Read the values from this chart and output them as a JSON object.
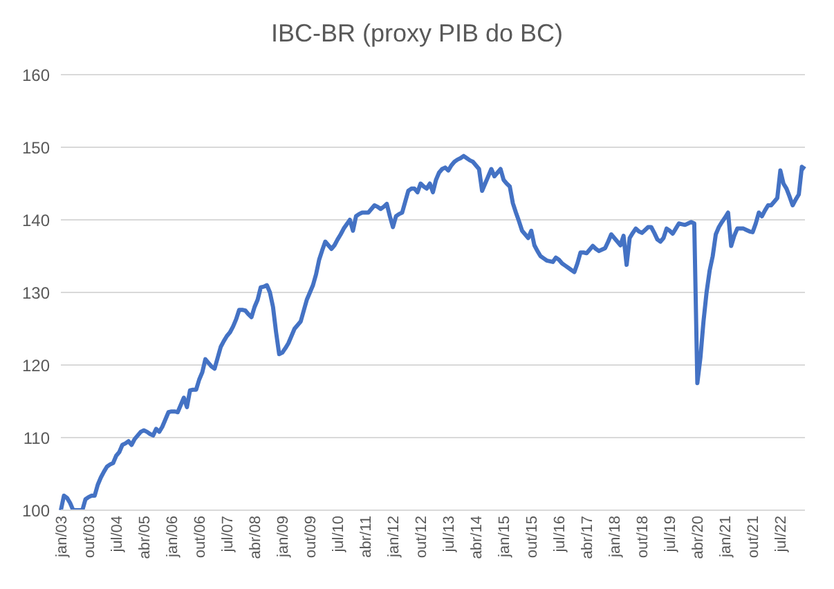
{
  "chart_data": {
    "type": "line",
    "title": "IBC-BR (proxy PIB do BC)",
    "categories": [
      "jan/03",
      null,
      null,
      null,
      null,
      null,
      null,
      null,
      null,
      "out/03",
      null,
      null,
      null,
      null,
      null,
      null,
      null,
      null,
      "jul/04",
      null,
      null,
      null,
      null,
      null,
      null,
      null,
      null,
      "abr/05",
      null,
      null,
      null,
      null,
      null,
      null,
      null,
      null,
      "jan/06",
      null,
      null,
      null,
      null,
      null,
      null,
      null,
      null,
      "out/06",
      null,
      null,
      null,
      null,
      null,
      null,
      null,
      null,
      "jul/07",
      null,
      null,
      null,
      null,
      null,
      null,
      null,
      null,
      "abr/08",
      null,
      null,
      null,
      null,
      null,
      null,
      null,
      null,
      "jan/09",
      null,
      null,
      null,
      null,
      null,
      null,
      null,
      null,
      "out/09",
      null,
      null,
      null,
      null,
      null,
      null,
      null,
      null,
      "jul/10",
      null,
      null,
      null,
      null,
      null,
      null,
      null,
      null,
      "abr/11",
      null,
      null,
      null,
      null,
      null,
      null,
      null,
      null,
      "jan/12",
      null,
      null,
      null,
      null,
      null,
      null,
      null,
      null,
      "out/12",
      null,
      null,
      null,
      null,
      null,
      null,
      null,
      null,
      "jul/13",
      null,
      null,
      null,
      null,
      null,
      null,
      null,
      null,
      "abr/14",
      null,
      null,
      null,
      null,
      null,
      null,
      null,
      null,
      "jan/15",
      null,
      null,
      null,
      null,
      null,
      null,
      null,
      null,
      "out/15",
      null,
      null,
      null,
      null,
      null,
      null,
      null,
      null,
      "jul/16",
      null,
      null,
      null,
      null,
      null,
      null,
      null,
      null,
      "abr/17",
      null,
      null,
      null,
      null,
      null,
      null,
      null,
      null,
      "jan/18",
      null,
      null,
      null,
      null,
      null,
      null,
      null,
      null,
      "out/18",
      null,
      null,
      null,
      null,
      null,
      null,
      null,
      null,
      "jul/19",
      null,
      null,
      null,
      null,
      null,
      null,
      null,
      null,
      "abr/20",
      null,
      null,
      null,
      null,
      null,
      null,
      null,
      null,
      "jan/21",
      null,
      null,
      null,
      null,
      null,
      null,
      null,
      null,
      "out/21",
      null,
      null,
      null,
      null,
      null,
      null,
      null,
      null,
      "jul/22",
      null,
      null,
      null,
      null,
      null,
      null,
      null,
      null
    ],
    "series": [
      {
        "color": "#4472c4",
        "values": [
          100,
          102,
          101.7,
          101,
          100,
          100,
          100,
          100,
          101.5,
          101.8,
          102,
          102,
          103.5,
          104.5,
          105.3,
          106,
          106.3,
          106.5,
          107.5,
          108,
          109,
          109.2,
          109.5,
          109,
          109.8,
          110.3,
          110.8,
          111,
          110.8,
          110.5,
          110.3,
          111.2,
          110.8,
          111.5,
          112.5,
          113.5,
          113.6,
          113.6,
          113.5,
          114.5,
          115.5,
          114.2,
          116.5,
          116.6,
          116.6,
          118,
          119,
          120.8,
          120.3,
          119.8,
          119.5,
          121,
          122.5,
          123.3,
          124,
          124.5,
          125.3,
          126.3,
          127.6,
          127.6,
          127.5,
          127,
          126.6,
          128,
          129,
          130.7,
          130.8,
          131,
          130,
          128,
          124.5,
          121.5,
          121.7,
          122.3,
          123,
          124,
          125,
          125.5,
          126,
          127.5,
          129,
          130,
          131,
          132.5,
          134.5,
          135.8,
          137,
          136.5,
          136,
          136.5,
          137.3,
          138,
          138.8,
          139.4,
          140,
          138.5,
          140.5,
          140.8,
          141,
          141,
          141,
          141.5,
          142,
          141.8,
          141.5,
          141.8,
          142.2,
          140.5,
          139,
          140.5,
          140.8,
          141,
          142.5,
          144,
          144.3,
          144.3,
          143.8,
          145,
          144.6,
          144.3,
          145,
          143.8,
          145.5,
          146.5,
          147,
          147.2,
          146.8,
          147.5,
          148,
          148.3,
          148.5,
          148.8,
          148.5,
          148.2,
          148,
          147.5,
          147,
          144,
          145,
          146,
          147,
          146,
          146.5,
          147,
          145.5,
          145,
          144.6,
          142.3,
          141,
          139.8,
          138.5,
          138,
          137.5,
          138.5,
          136.5,
          135.7,
          135,
          134.7,
          134.4,
          134.3,
          134.2,
          134.8,
          134.5,
          134,
          133.7,
          133.4,
          133.1,
          132.8,
          134,
          135.5,
          135.5,
          135.4,
          135.9,
          136.4,
          136,
          135.7,
          135.9,
          136.1,
          137,
          138,
          137.5,
          137,
          136.5,
          137.8,
          133.8,
          137.5,
          138.2,
          138.8,
          138.4,
          138.2,
          138.6,
          139,
          139,
          138.2,
          137.3,
          137,
          137.5,
          138.8,
          138.5,
          138.1,
          138.8,
          139.5,
          139.4,
          139.3,
          139.5,
          139.7,
          139.5,
          117.5,
          121,
          126,
          130,
          133,
          135,
          138,
          139,
          139.7,
          140.3,
          141,
          136.4,
          137.8,
          138.8,
          138.8,
          138.8,
          138.6,
          138.4,
          138.3,
          139.5,
          141,
          140.5,
          141.3,
          142,
          142,
          142.5,
          143,
          146.8,
          145,
          144.3,
          143.2,
          142,
          142.8,
          143.5,
          147.3,
          147
        ]
      }
    ],
    "ylim": [
      100,
      160
    ],
    "yticks": [
      100,
      110,
      120,
      130,
      140,
      150,
      160
    ],
    "grid": "y"
  }
}
